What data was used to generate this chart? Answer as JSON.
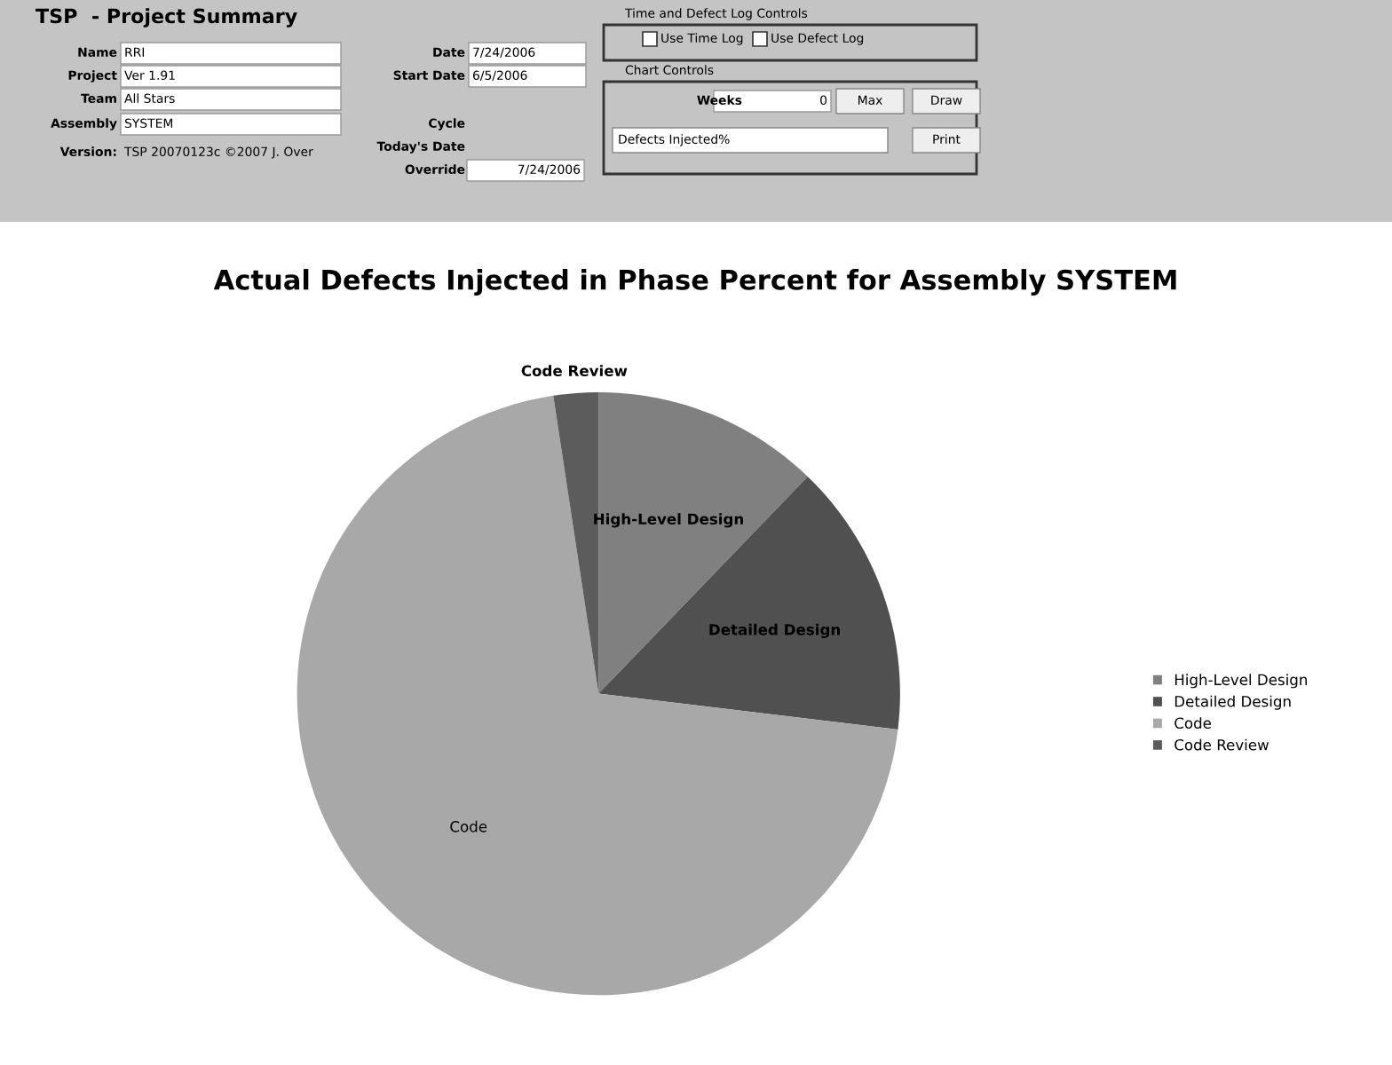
{
  "chart_data": [
    {
      "type": "other",
      "title": "TSP  - Project Summary",
      "annotations": [
        "Name",
        "RRI",
        "Project",
        "Ver 1.91",
        "Team",
        "All Stars",
        "Assembly",
        "SYSTEM",
        "Version:",
        "TSP 20070123c ©2007 J. Over",
        "Date",
        "7/24/2006",
        "Start Date",
        "6/5/2006",
        "Cycle",
        "Today's Date",
        "Override",
        "7/24/2006",
        "Time and Defect Log Controls",
        "Use Time Log",
        "Use Defect Log",
        "Chart Controls",
        "Weeks",
        "0",
        "Max",
        "Draw",
        "Defects Injected%",
        "Print"
      ]
    },
    {
      "type": "pie",
      "title": "Actual Defects Injected in Phase Percent for Assembly SYSTEM",
      "categories": [
        "High-Level Design",
        "Detailed Design",
        "Code",
        "Code Review"
      ],
      "values": [
        12.2,
        14.7,
        70.7,
        2.4
      ],
      "colors": [
        "#808080",
        "#505050",
        "#a8a8a8",
        "#5c5c5c"
      ],
      "legend": "right"
    }
  ]
}
